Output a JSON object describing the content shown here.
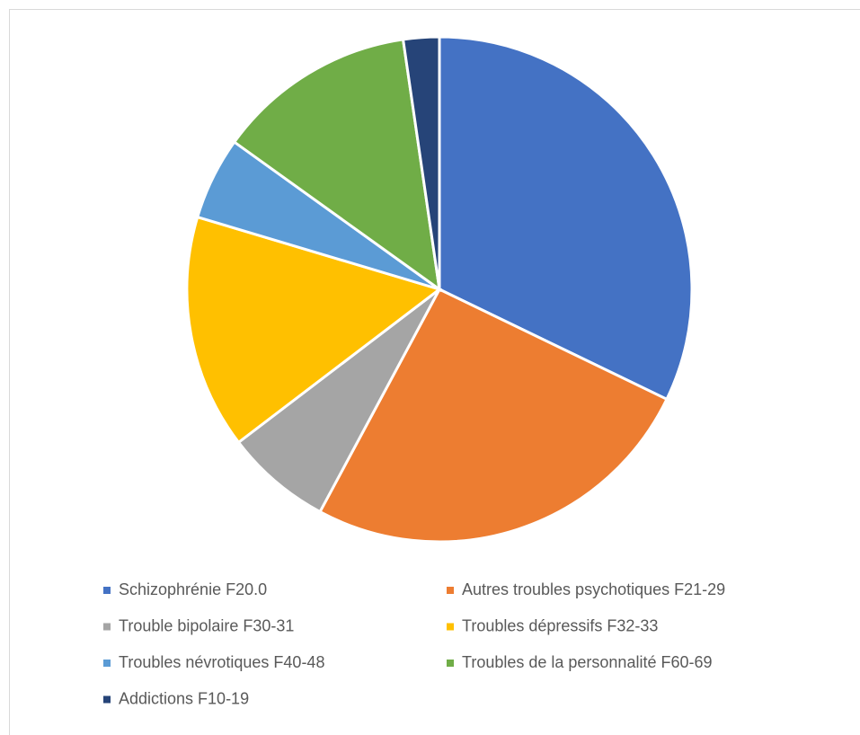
{
  "chart_data": {
    "type": "pie",
    "categories": [
      "Schizophrénie F20.0",
      "Autres troubles psychotiques F21-29",
      "Trouble bipolaire F30-31",
      "Troubles dépressifs F32-33",
      "Troubles névrotiques F40-48",
      "Troubles de la personnalité F60-69",
      "Addictions F10-19"
    ],
    "values": [
      32.2,
      25.7,
      6.8,
      15.0,
      5.3,
      12.8,
      2.3
    ],
    "colors": [
      "#4472c4",
      "#ed7d31",
      "#a5a5a5",
      "#ffc000",
      "#5b9bd5",
      "#70ad47",
      "#264478"
    ],
    "legend": "bottom"
  }
}
